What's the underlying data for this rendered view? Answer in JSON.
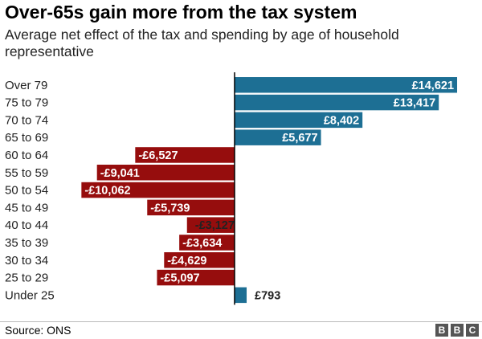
{
  "chart_data": {
    "type": "bar",
    "orientation": "horizontal",
    "title": "Over-65s gain more from the tax system",
    "subtitle": "Average net effect of the tax and spending by age of household representative",
    "categories": [
      "Over 79",
      "75 to 79",
      "70 to 74",
      "65 to 69",
      "60 to 64",
      "55 to 59",
      "50 to 54",
      "45 to 49",
      "40 to 44",
      "35 to 39",
      "30 to 34",
      "25 to 29",
      "Under 25"
    ],
    "values": [
      14621,
      13417,
      8402,
      5677,
      -6527,
      -9041,
      -10062,
      -5739,
      -3127,
      -3634,
      -4629,
      -5097,
      793
    ],
    "data_labels": [
      "£14,621",
      "£13,417",
      "£8,402",
      "£5,677",
      "-£6,527",
      "-£9,041",
      "-£10,062",
      "-£5,739",
      "-£3,127",
      "-£3,634",
      "-£4,629",
      "-£5,097",
      "£793"
    ],
    "xlim": [
      -11000,
      15200
    ],
    "colors": {
      "positive": "#1d6f94",
      "negative": "#960d0d",
      "axis": "#000000"
    },
    "grid": false,
    "legend": "none"
  },
  "footer": {
    "source": "Source: ONS",
    "logo_letters": [
      "B",
      "B",
      "C"
    ]
  }
}
